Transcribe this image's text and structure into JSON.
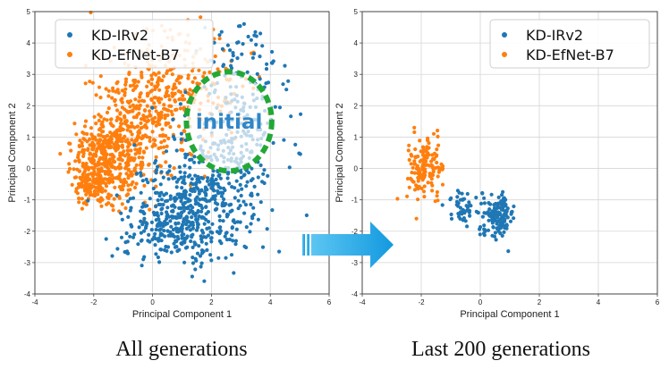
{
  "chart_data": [
    {
      "type": "scatter",
      "title": "",
      "caption": "All generations",
      "xlabel": "Principal Component 1",
      "ylabel": "Principal Component 2",
      "xlim": [
        -4,
        6
      ],
      "ylim": [
        -4,
        5
      ],
      "xticks": [
        -4,
        -2,
        0,
        2,
        4,
        6
      ],
      "yticks": [
        -4,
        -3,
        -2,
        -1,
        0,
        1,
        2,
        3,
        4,
        5
      ],
      "grid": true,
      "legend_position": "top-left",
      "series": [
        {
          "name": "KD-IRv2",
          "color": "#1f77b4",
          "clusters": [
            {
              "center": [
                1.3,
                -1.3
              ],
              "spread": [
                1.0,
                0.75
              ],
              "count": 430
            },
            {
              "center": [
                2.6,
                0.6
              ],
              "spread": [
                0.9,
                1.0
              ],
              "count": 200
            },
            {
              "center": [
                3.2,
                3.0
              ],
              "spread": [
                0.8,
                1.0
              ],
              "count": 90
            },
            {
              "center": [
                0.5,
                -2.3
              ],
              "spread": [
                0.9,
                0.4
              ],
              "count": 90
            }
          ]
        },
        {
          "name": "KD-EfNet-B7",
          "color": "#ff7f0e",
          "clusters": [
            {
              "center": [
                -1.4,
                0.3
              ],
              "spread": [
                0.7,
                0.7
              ],
              "count": 420
            },
            {
              "center": [
                -0.2,
                1.8
              ],
              "spread": [
                0.9,
                0.9
              ],
              "count": 300
            },
            {
              "center": [
                1.2,
                2.7
              ],
              "spread": [
                1.1,
                1.0
              ],
              "count": 160
            },
            {
              "center": [
                -2.0,
                -0.3
              ],
              "spread": [
                0.4,
                0.5
              ],
              "count": 120
            }
          ]
        }
      ],
      "annotations": [
        {
          "text": "initial",
          "center": [
            2.6,
            1.5
          ],
          "radius": [
            1.45,
            1.58
          ],
          "style": "dashed-circle",
          "color": "#22a836"
        }
      ]
    },
    {
      "type": "scatter",
      "title": "",
      "caption": "Last 200 generations",
      "xlabel": "Principal Component 1",
      "ylabel": "Principal Component 2",
      "xlim": [
        -4,
        6
      ],
      "ylim": [
        -4,
        5
      ],
      "xticks": [
        -4,
        -2,
        0,
        2,
        4,
        6
      ],
      "yticks": [
        -4,
        -3,
        -2,
        -1,
        0,
        1,
        2,
        3,
        4,
        5
      ],
      "grid": true,
      "legend_position": "top-right",
      "series": [
        {
          "name": "KD-IRv2",
          "color": "#1f77b4",
          "clusters": [
            {
              "center": [
                0.6,
                -1.5
              ],
              "spread": [
                0.28,
                0.32
              ],
              "count": 150
            },
            {
              "center": [
                -0.6,
                -1.2
              ],
              "spread": [
                0.22,
                0.25
              ],
              "count": 45
            }
          ]
        },
        {
          "name": "KD-EfNet-B7",
          "color": "#ff7f0e",
          "clusters": [
            {
              "center": [
                -1.9,
                0.1
              ],
              "spread": [
                0.3,
                0.5
              ],
              "count": 150
            }
          ]
        }
      ],
      "annotations": []
    }
  ],
  "arrow": {
    "color": "#1fa8e6",
    "direction": "right"
  }
}
